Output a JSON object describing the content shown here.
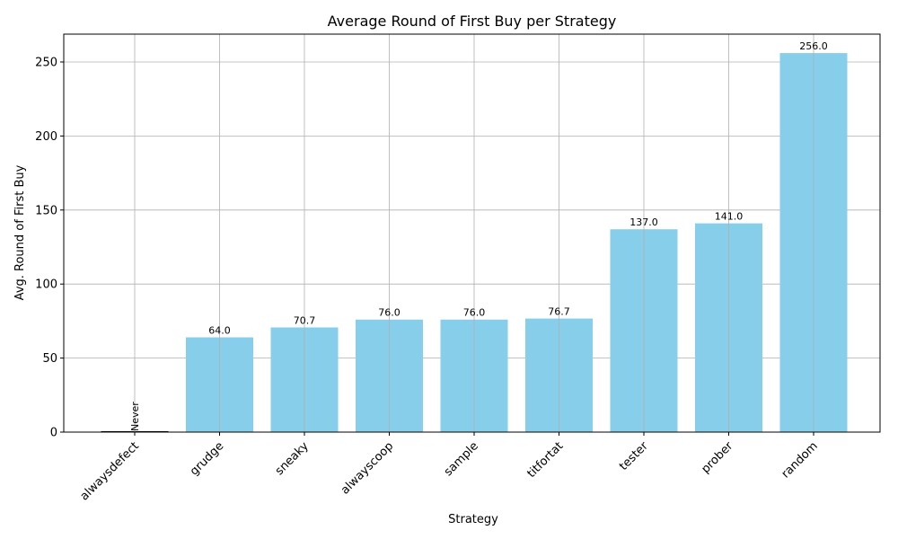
{
  "chart_data": {
    "type": "bar",
    "title": "Average Round of First Buy per Strategy",
    "xlabel": "Strategy",
    "ylabel": "Avg. Round of First Buy",
    "categories": [
      "alwaysdefect",
      "grudge",
      "sneaky",
      "alwayscoop",
      "sample",
      "titfortat",
      "tester",
      "prober",
      "random"
    ],
    "values": [
      0,
      64.0,
      70.7,
      76.0,
      76.0,
      76.7,
      137.0,
      141.0,
      256.0
    ],
    "data_labels": [
      "Never",
      "64.0",
      "70.7",
      "76.0",
      "76.0",
      "76.7",
      "137.0",
      "141.0",
      "256.0"
    ],
    "ylim": [
      0,
      268.8
    ],
    "yticks": [
      0,
      50,
      100,
      150,
      200,
      250
    ],
    "grid": true,
    "bar_color": "#87CEEB"
  }
}
